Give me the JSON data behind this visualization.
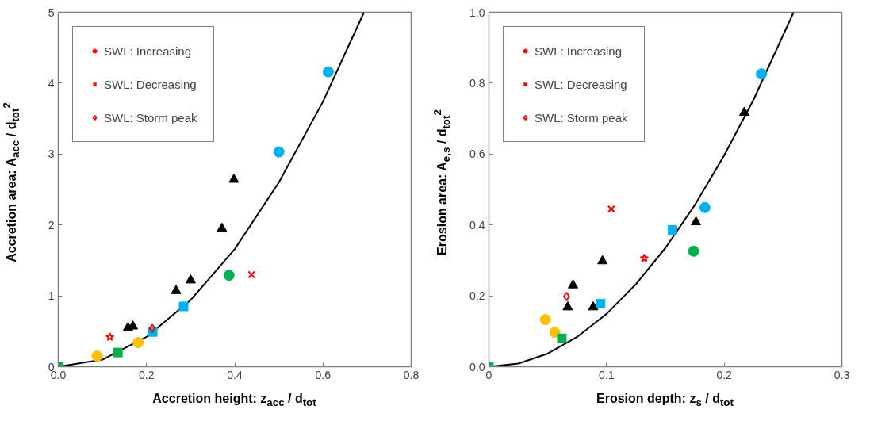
{
  "chart_data": [
    {
      "type": "scatter",
      "xlabel": "Accretion height: z$_{acc}$ / d$_{tot}$",
      "ylabel": "Accretion area: A$_{acc}$ / d$_{tot}$$^{2}$",
      "xlim": [
        0,
        0.8
      ],
      "ylim": [
        0,
        5
      ],
      "xticks": [
        {
          "value": 0,
          "label": "0.0"
        },
        0.2,
        0.4,
        0.6,
        0.8
      ],
      "yticks": [
        0,
        1,
        2,
        3,
        4,
        5
      ],
      "grid": false,
      "legend": "top left",
      "series": [
        {
          "type": "line",
          "color": "#000000",
          "x": [
            0,
            0.1,
            0.2,
            0.3,
            0.4,
            0.5,
            0.6,
            0.693
          ],
          "values": [
            0,
            0.1,
            0.42,
            0.94,
            1.66,
            2.6,
            3.74,
            5.0
          ]
        },
        {
          "color": "#00b050",
          "marker": "square",
          "x": [
            0
          ],
          "values": [
            0
          ]
        },
        {
          "color": "#ffc000",
          "marker": "circle",
          "x": [
            0.088,
            0.181
          ],
          "values": [
            0.15,
            0.34
          ]
        },
        {
          "color": "#00b050",
          "marker": "square",
          "x": [
            0.135
          ],
          "values": [
            0.2
          ]
        },
        {
          "color": "#000000",
          "marker": "triangle",
          "x": [
            0.158,
            0.169,
            0.267,
            0.3
          ],
          "values": [
            0.55,
            0.57,
            1.07,
            1.22
          ]
        },
        {
          "color": "#00b0f0",
          "marker": "square",
          "x": [
            0.214
          ],
          "values": [
            0.49
          ]
        },
        {
          "color": "#00b0f0",
          "marker": "square",
          "x": [
            0.284
          ],
          "values": [
            0.85
          ]
        },
        {
          "color": "#000000",
          "marker": "triangle",
          "x": [
            0.371,
            0.398
          ],
          "values": [
            1.95,
            2.64
          ]
        },
        {
          "color": "#00b050",
          "marker": "circle",
          "x": [
            0.387
          ],
          "values": [
            1.29
          ]
        },
        {
          "color": "#00b0f0",
          "marker": "circle",
          "x": [
            0.5,
            0.612
          ],
          "values": [
            3.03,
            4.16
          ]
        },
        {
          "name": "SWL: Increasing",
          "color": "#ff0000",
          "marker": "star",
          "x": [
            0.117
          ],
          "values": [
            0.42
          ]
        },
        {
          "name": "SWL: Decreasing",
          "color": "#ff0000",
          "marker": "cross",
          "x": [
            0.438
          ],
          "values": [
            1.3
          ]
        },
        {
          "name": "SWL: Storm peak",
          "color": "#ff0000",
          "marker": "diamond",
          "x": [
            0.213
          ],
          "values": [
            0.54
          ]
        }
      ]
    },
    {
      "type": "scatter",
      "xlabel": "Erosion depth: z$_{s}$ / d$_{tot}$",
      "ylabel": "Erosion area: A$_{e,s}$ / d$_{tot}$$^{2}$",
      "xlim": [
        0,
        0.3
      ],
      "ylim": [
        0,
        1.0
      ],
      "xticks": [
        0,
        0.1,
        0.2,
        0.3
      ],
      "yticks": [
        {
          "value": 0,
          "label": "0.0"
        },
        0.2,
        0.4,
        0.6,
        0.8,
        {
          "value": 1,
          "label": "1.0"
        }
      ],
      "grid": false,
      "legend": "top left",
      "series": [
        {
          "type": "line",
          "color": "#000000",
          "x": [
            0,
            0.025,
            0.05,
            0.075,
            0.1,
            0.125,
            0.15,
            0.175,
            0.2,
            0.225,
            0.259
          ],
          "values": [
            0,
            0.009,
            0.037,
            0.084,
            0.149,
            0.233,
            0.335,
            0.456,
            0.596,
            0.754,
            1.0
          ]
        },
        {
          "color": "#00b050",
          "marker": "square",
          "x": [
            0
          ],
          "values": [
            0
          ]
        },
        {
          "color": "#ffc000",
          "marker": "circle",
          "x": [
            0.048,
            0.056
          ],
          "values": [
            0.133,
            0.097
          ]
        },
        {
          "color": "#00b050",
          "marker": "square",
          "x": [
            0.062
          ],
          "values": [
            0.08
          ]
        },
        {
          "color": "#000000",
          "marker": "triangle",
          "x": [
            0.067,
            0.0715,
            0.0886,
            0.0965
          ],
          "values": [
            0.168,
            0.23,
            0.168,
            0.298
          ]
        },
        {
          "color": "#00b0f0",
          "marker": "square",
          "x": [
            0.0949
          ],
          "values": [
            0.178
          ]
        },
        {
          "color": "#00b0f0",
          "marker": "square",
          "x": [
            0.156
          ],
          "values": [
            0.386
          ]
        },
        {
          "color": "#000000",
          "marker": "triangle",
          "x": [
            0.176,
            0.217
          ],
          "values": [
            0.408,
            0.717
          ]
        },
        {
          "color": "#00b050",
          "marker": "circle",
          "x": [
            0.174
          ],
          "values": [
            0.326
          ]
        },
        {
          "color": "#00b0f0",
          "marker": "circle",
          "x": [
            0.1836,
            0.2316
          ],
          "values": [
            0.449,
            0.826
          ]
        },
        {
          "name": "SWL: Increasing",
          "color": "#ff0000",
          "marker": "star",
          "x": [
            0.132
          ],
          "values": [
            0.306
          ]
        },
        {
          "name": "SWL: Decreasing",
          "color": "#ff0000",
          "marker": "cross",
          "x": [
            0.104
          ],
          "values": [
            0.445
          ]
        },
        {
          "name": "SWL: Storm peak",
          "color": "#ff0000",
          "marker": "diamond",
          "x": [
            0.066
          ],
          "values": [
            0.198
          ]
        }
      ]
    }
  ]
}
